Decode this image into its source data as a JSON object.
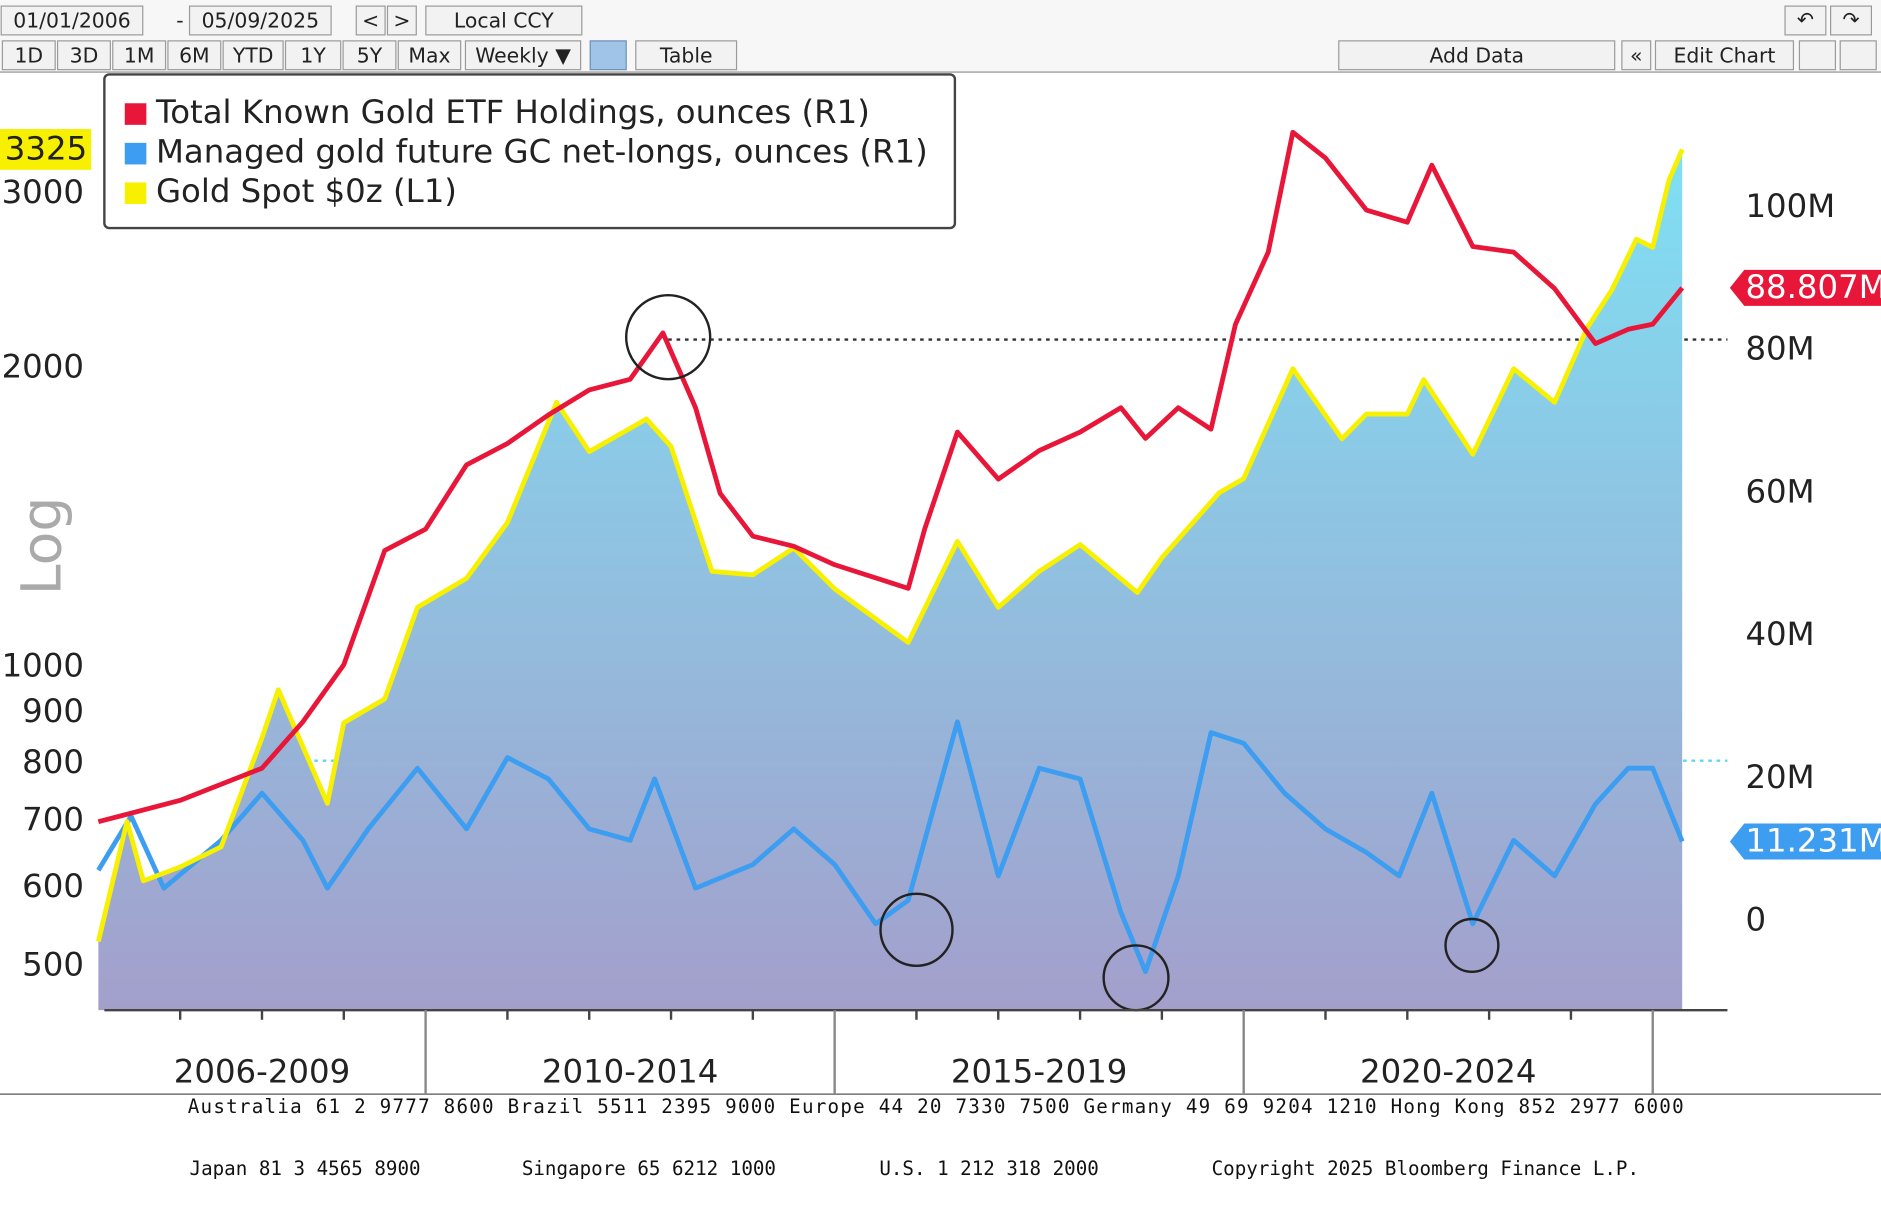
{
  "toolbar": {
    "start_date": "01/01/2006",
    "separator": "-",
    "end_date": "05/09/2025",
    "prev": "<",
    "next": ">",
    "currency": "Local CCY",
    "periods": [
      "1D",
      "3D",
      "1M",
      "6M",
      "YTD",
      "1Y",
      "5Y",
      "Max"
    ],
    "frequency": "Weekly ▼",
    "table": "Table",
    "add_data": "Add Data",
    "back": "«",
    "edit_chart": "Edit Chart"
  },
  "footer": {
    "line1": "Australia 61 2 9777 8600 Brazil 5511 2395 9000 Europe 44 20 7330 7500 Germany 49 69 9204 1210 Hong Kong 852 2977 6000",
    "line2": [
      "Japan 81 3 4565 8900",
      "Singapore 65 6212 1000",
      "U.S. 1 212 318 2000",
      "Copyright 2025 Bloomberg Finance L.P."
    ]
  },
  "chart_data": {
    "type": "line",
    "ylabel": "Log",
    "ylog": true,
    "xlim": [
      2006,
      2025.4
    ],
    "xticks": [
      2010,
      2015,
      2020,
      2025
    ],
    "xminor_ticks": [
      2007,
      2008,
      2009,
      2011,
      2012,
      2013,
      2014,
      2016,
      2017,
      2018,
      2019,
      2021,
      2022,
      2023,
      2024
    ],
    "period_labels": [
      "2006-2009",
      "2010-2014",
      "2015-2019",
      "2020-2024"
    ],
    "ylim": [
      452,
      3956
    ],
    "yticks": [
      500,
      600,
      700,
      800,
      900,
      1000,
      2000,
      3000
    ],
    "y2lim": [
      -12400000,
      118700000
    ],
    "y2ticks": [
      0,
      {
        "value": 20000000,
        "label": "20M"
      },
      {
        "value": 40000000,
        "label": "40M"
      },
      {
        "value": 60000000,
        "label": "60M"
      },
      {
        "value": 80000000,
        "label": "80M"
      },
      {
        "value": 100000000,
        "label": "100M"
      }
    ],
    "series": [
      {
        "name": "Total Known Gold ETF Holdings, ounces (R1)",
        "color": "#e8173a",
        "axis": "y2",
        "last_label": "88.807M",
        "x": [
          2006.0,
          2007.0,
          2008.0,
          2008.5,
          2009.0,
          2009.5,
          2010.0,
          2010.5,
          2011.0,
          2011.5,
          2012.0,
          2012.5,
          2012.9,
          2013.3,
          2013.6,
          2014.0,
          2014.5,
          2015.0,
          2015.9,
          2016.1,
          2016.5,
          2017.0,
          2017.5,
          2018.0,
          2018.5,
          2018.8,
          2019.2,
          2019.6,
          2019.9,
          2020.3,
          2020.6,
          2021.0,
          2021.5,
          2022.0,
          2022.3,
          2022.8,
          2023.3,
          2023.8,
          2024.3,
          2024.7,
          2025.0,
          2025.36
        ],
        "values": [
          14000000,
          17000000,
          21500000,
          28000000,
          36000000,
          52000000,
          55000000,
          64000000,
          67000000,
          71000000,
          74500000,
          76000000,
          82500000,
          72000000,
          60000000,
          54000000,
          52600000,
          50000000,
          46700000,
          55000000,
          68600000,
          62000000,
          66000000,
          68600000,
          72000000,
          67700000,
          72000000,
          69000000,
          83700000,
          93800000,
          110600000,
          107000000,
          99700000,
          98000000,
          106000000,
          94600000,
          93800000,
          88700000,
          81000000,
          83000000,
          83700000,
          88807000
        ]
      },
      {
        "name": "Managed gold future GC net-longs, ounces (R1)",
        "color": "#3d9df0",
        "axis": "y2",
        "last_label": "11.231M",
        "x": [
          2006.0,
          2006.4,
          2006.8,
          2007.5,
          2008.0,
          2008.5,
          2008.8,
          2009.3,
          2009.9,
          2010.5,
          2011.0,
          2011.5,
          2012.0,
          2012.5,
          2012.8,
          2013.3,
          2014.0,
          2014.5,
          2015.0,
          2015.5,
          2015.9,
          2016.5,
          2017.0,
          2017.5,
          2018.0,
          2018.5,
          2018.8,
          2019.2,
          2019.6,
          2020.0,
          2020.5,
          2021.0,
          2021.5,
          2021.9,
          2022.3,
          2022.8,
          2023.3,
          2023.8,
          2024.3,
          2024.7,
          2025.0,
          2025.36
        ],
        "values": [
          7200000,
          14800000,
          4700000,
          11400000,
          18000000,
          11400000,
          4700000,
          13000000,
          21500000,
          13000000,
          23000000,
          20000000,
          13000000,
          11400000,
          20000000,
          4700000,
          8000000,
          13000000,
          8000000,
          -300000,
          3000000,
          28000000,
          6400000,
          21500000,
          20000000,
          1300000,
          -7000000,
          6400000,
          26500000,
          25000000,
          18000000,
          13000000,
          9700000,
          6400000,
          18000000,
          -300000,
          11400000,
          6400000,
          16500000,
          21500000,
          21500000,
          11231000
        ]
      },
      {
        "name": "Gold Spot $0z (L1)",
        "color": "#f7f000",
        "axis": "y",
        "area": true,
        "x": [
          2006.0,
          2006.35,
          2006.55,
          2007.0,
          2007.5,
          2008.0,
          2008.2,
          2008.8,
          2009.0,
          2009.5,
          2009.9,
          2010.5,
          2011.0,
          2011.6,
          2012.0,
          2012.7,
          2013.0,
          2013.5,
          2014.0,
          2014.5,
          2015.0,
          2015.9,
          2016.5,
          2017.0,
          2017.5,
          2018.0,
          2018.7,
          2019.0,
          2019.7,
          2020.0,
          2020.6,
          2021.2,
          2021.5,
          2022.0,
          2022.2,
          2022.8,
          2023.3,
          2023.8,
          2024.2,
          2024.5,
          2024.8,
          2025.0,
          2025.2,
          2025.36
        ],
        "values": [
          530,
          700,
          610,
          630,
          660,
          850,
          950,
          730,
          880,
          930,
          1150,
          1230,
          1400,
          1850,
          1650,
          1780,
          1670,
          1250,
          1240,
          1320,
          1200,
          1060,
          1340,
          1150,
          1250,
          1330,
          1190,
          1290,
          1500,
          1550,
          2000,
          1700,
          1800,
          1800,
          1950,
          1640,
          2000,
          1850,
          2200,
          2400,
          2700,
          2650,
          3100,
          3325
        ]
      }
    ]
  }
}
